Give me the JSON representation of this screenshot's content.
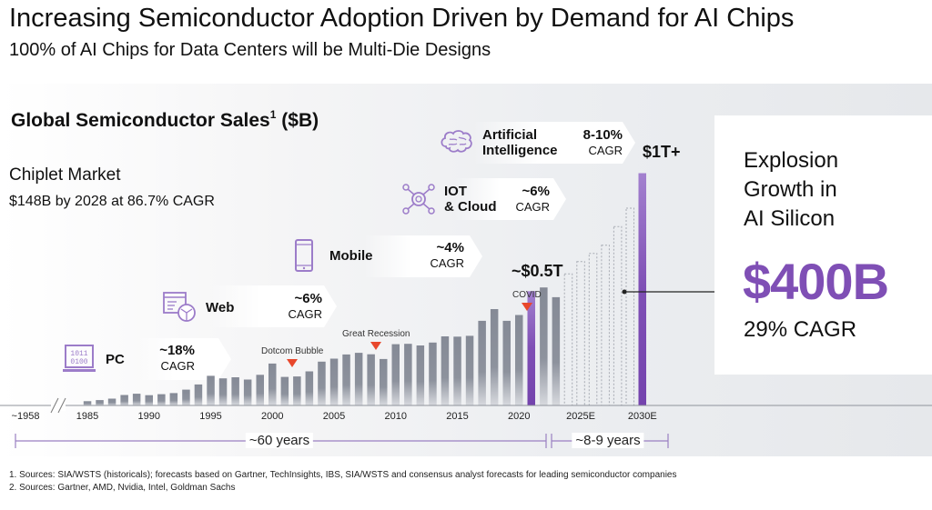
{
  "header": {
    "title": "Increasing Semiconductor Adoption Driven by Demand for AI Chips",
    "subtitle": "100% of AI Chips for Data Centers will be Multi-Die Designs"
  },
  "chart_header": {
    "title": "Global Semiconductor Sales",
    "title_sup": "1",
    "title_unit": "($B)"
  },
  "chiplet": {
    "title": "Chiplet Market",
    "detail": "$148B by 2028 at 86.7% CAGR"
  },
  "eras": [
    {
      "name": "PC",
      "rate": "~18%",
      "unit": "CAGR",
      "icon": "binary-laptop-icon"
    },
    {
      "name": "Web",
      "rate": "~6%",
      "unit": "CAGR",
      "icon": "web-globe-icon"
    },
    {
      "name": "Mobile",
      "rate": "~4%",
      "unit": "CAGR",
      "icon": "mobile-phone-icon"
    },
    {
      "name_line1": "IOT",
      "name_line2": "& Cloud",
      "rate": "~6%",
      "unit": "CAGR",
      "icon": "iot-network-icon"
    },
    {
      "name_line1": "Artificial",
      "name_line2": "Intelligence",
      "rate": "8-10%",
      "unit": "CAGR",
      "icon": "brain-icon"
    }
  ],
  "events": [
    {
      "label": "Dotcom Bubble",
      "year": 2001
    },
    {
      "label": "Great Recession",
      "year": 2008
    },
    {
      "label": "COVID",
      "year": 2019
    }
  ],
  "milestones": {
    "half_trillion": "~$0.5T",
    "trillion": "$1T+"
  },
  "ai_box": {
    "line1": "Explosion",
    "line2": "Growth in",
    "line3": "AI Silicon",
    "value": "$400B",
    "cagr": "29% CAGR"
  },
  "timeline": {
    "left_span": "~60 years",
    "right_span": "~8-9 years"
  },
  "footnotes": [
    "1.  Sources: SIA/WSTS (historicals); forecasts based on Gartner, TechInsights, IBS, SIA/WSTS and consensus analyst forecasts for leading semiconductor companies",
    "2.  Sources: Gartner, AMD, Nvidia, Intel, Goldman Sachs"
  ],
  "colors": {
    "accent": "#7f4fb5",
    "bar": "#8a8f9a",
    "event_marker": "#e8472c"
  },
  "chart_data": {
    "type": "bar",
    "title": "Global Semiconductor Sales ($B)",
    "xlabel": "",
    "ylabel": "$B",
    "ylim": [
      0,
      1150
    ],
    "grid": false,
    "x_ticks": [
      "~1958",
      "1985",
      "1990",
      "1995",
      "2000",
      "2005",
      "2010",
      "2015",
      "2020",
      "2025E",
      "2030E"
    ],
    "categories": [
      "1985",
      "1986",
      "1987",
      "1988",
      "1989",
      "1990",
      "1991",
      "1992",
      "1993",
      "1994",
      "1995",
      "1996",
      "1997",
      "1998",
      "1999",
      "2000",
      "2001",
      "2002",
      "2003",
      "2004",
      "2005",
      "2006",
      "2007",
      "2008",
      "2009",
      "2010",
      "2011",
      "2012",
      "2013",
      "2014",
      "2015",
      "2016",
      "2017",
      "2018",
      "2019",
      "2020",
      "2021",
      "2022",
      "2023",
      "2024E",
      "2025E",
      "2026E",
      "2027E",
      "2028E",
      "2029E",
      "2030E"
    ],
    "series": [
      {
        "name": "Historical",
        "values": [
          21,
          26,
          33,
          51,
          57,
          50,
          55,
          60,
          77,
          102,
          144,
          132,
          137,
          126,
          149,
          204,
          139,
          141,
          166,
          213,
          228,
          248,
          256,
          249,
          226,
          298,
          300,
          292,
          306,
          336,
          335,
          339,
          412,
          469,
          412,
          440,
          556,
          574,
          527,
          null,
          null,
          null,
          null,
          null,
          null,
          null
        ]
      },
      {
        "name": "Forecast",
        "values": [
          null,
          null,
          null,
          null,
          null,
          null,
          null,
          null,
          null,
          null,
          null,
          null,
          null,
          null,
          null,
          null,
          null,
          null,
          null,
          null,
          null,
          null,
          null,
          null,
          null,
          null,
          null,
          null,
          null,
          null,
          null,
          null,
          null,
          null,
          null,
          null,
          null,
          null,
          null,
          640,
          700,
          740,
          780,
          870,
          960,
          1130
        ]
      }
    ],
    "highlighted": [
      "2021",
      "2030E"
    ],
    "annotations": [
      {
        "text": "~$0.5T",
        "at": "2021"
      },
      {
        "text": "$1T+",
        "at": "2030E"
      },
      {
        "text": "Dotcom Bubble",
        "at": "2001"
      },
      {
        "text": "Great Recession",
        "at": "2008"
      },
      {
        "text": "COVID",
        "at": "2019"
      }
    ]
  }
}
